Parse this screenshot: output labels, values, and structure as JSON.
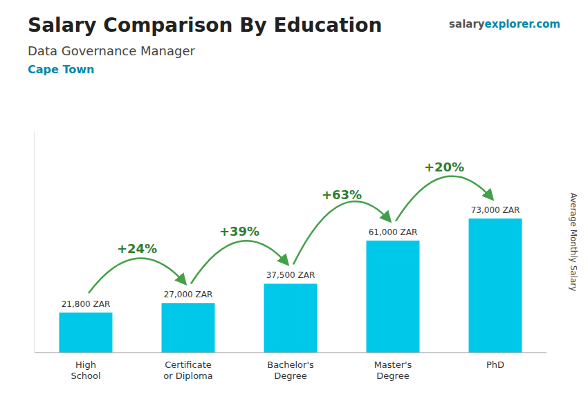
{
  "chart_data": {
    "type": "bar",
    "title": "Salary Comparison By Education",
    "subtitle": "Data Governance Manager",
    "annotations": [
      "Cape Town",
      "salary",
      "explorer.com"
    ],
    "ylabel": "Average Monthly Salary",
    "categories": [
      "High\nSchool",
      "Certificate\nor Diploma",
      "Bachelor's\nDegree",
      "Master's\nDegree",
      "PhD"
    ],
    "values": [
      21800,
      27000,
      37500,
      61000,
      73000
    ],
    "value_labels": [
      "21,800 ZAR",
      "27,000 ZAR",
      "37,500 ZAR",
      "61,000 ZAR",
      "73,000 ZAR"
    ],
    "data_labels": true,
    "pct_changes": [
      "+24%",
      "+39%",
      "+63%",
      "+20%"
    ],
    "color": "#00c8e8",
    "ylim": [
      0,
      120450
    ],
    "tick_labels": "x",
    "grid": false
  }
}
